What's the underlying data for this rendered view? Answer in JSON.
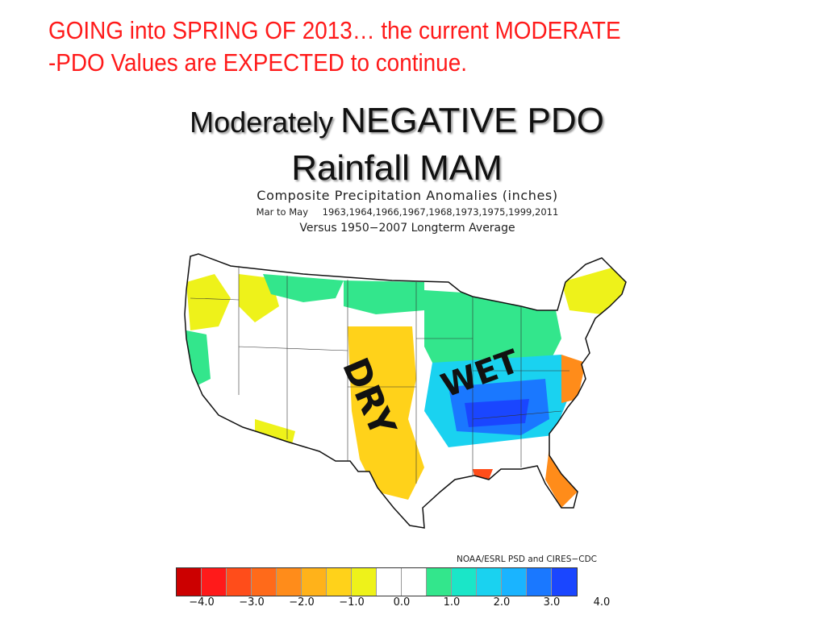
{
  "headline": {
    "line1": "GOING into SPRING OF  2013… the current MODERATE",
    "line2": "-PDO Values are  EXPECTED to continue."
  },
  "title": {
    "moderately": "Moderately",
    "negative_pdo": "NEGATIVE PDO",
    "line2": "Rainfall  MAM"
  },
  "map_header": {
    "title": "Composite Precipitation Anomalies (inches)",
    "period": "Mar to May",
    "years": "1963,1964,1966,1967,1968,1973,1975,1999,2011",
    "baseline": "Versus 1950−2007 Longterm Average"
  },
  "annotations": {
    "dry": "DRY",
    "wet": "WET"
  },
  "credit": "NOAA/ESRL PSD and CIRES−CDC",
  "legend": {
    "colors": [
      "#cc0000",
      "#ff1a1a",
      "#ff4d1a",
      "#ff6a1a",
      "#ff8c1a",
      "#ffb21a",
      "#ffd21a",
      "#eef21a",
      "#ffffff",
      "#ffffff",
      "#33e68c",
      "#1ae6c8",
      "#1ad2f0",
      "#1ab4ff",
      "#1a78ff",
      "#1a46ff"
    ],
    "tick_labels": [
      "−4.0",
      "−3.0",
      "−2.0",
      "−1.0",
      "0.0",
      "1.0",
      "2.0",
      "3.0",
      "4.0"
    ]
  },
  "map_colors": {
    "dry": "#ffd21a",
    "light_dry": "#eef21a",
    "neutral": "#ffffff",
    "light_wet": "#33e68c",
    "wet": "#1ad2f0",
    "very_wet": "#1a78ff",
    "extreme_wet": "#1a46ff",
    "very_dry": "#ff8c1a",
    "extreme_dry": "#ff4d1a"
  }
}
